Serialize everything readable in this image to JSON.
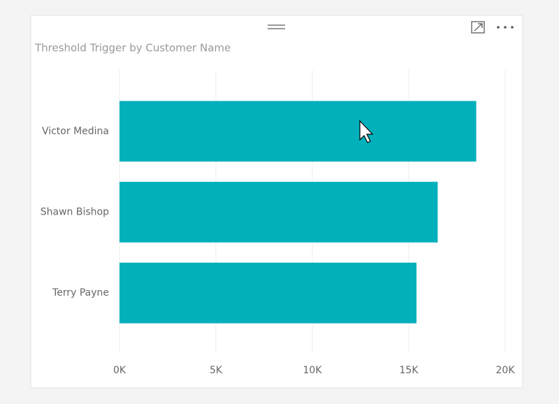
{
  "chart_data": {
    "type": "bar",
    "orientation": "horizontal",
    "title": "Threshold Trigger by Customer Name",
    "categories": [
      "Victor Medina",
      "Shawn Bishop",
      "Terry Payne"
    ],
    "values": [
      18500,
      16500,
      15400
    ],
    "color": "#01b0bb",
    "xlim": [
      0,
      20000
    ],
    "xticks": [
      {
        "value": 0,
        "label": "0K"
      },
      {
        "value": 5000,
        "label": "5K"
      },
      {
        "value": 10000,
        "label": "10K"
      },
      {
        "value": 15000,
        "label": "15K"
      },
      {
        "value": 20000,
        "label": "20K"
      }
    ],
    "grid": true
  }
}
